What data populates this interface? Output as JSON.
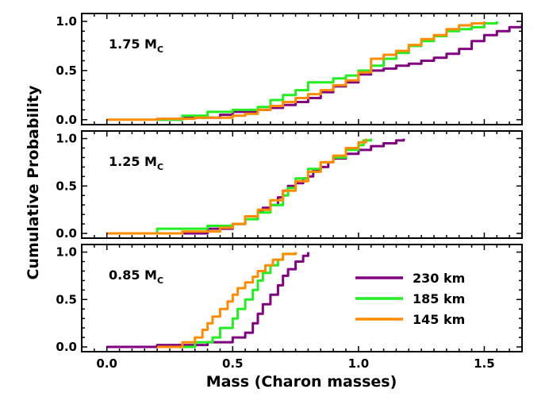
{
  "chart_data": {
    "type": "line",
    "xlabel": "Mass (Charon masses)",
    "ylabel": "Cumulative Probability",
    "xlim": [
      -0.1,
      1.65
    ],
    "ylim": [
      -0.05,
      1.08
    ],
    "x_ticks": [
      "0.0",
      "0.5",
      "1.0",
      "1.5"
    ],
    "x_tick_values": [
      0.0,
      0.5,
      1.0,
      1.5
    ],
    "y_ticks": [
      "0.0",
      "0.5",
      "1.0"
    ],
    "y_tick_values": [
      0.0,
      0.5,
      1.0
    ],
    "legend_placement": "lower-right of bottom panel",
    "series_styles": [
      {
        "name": "230 km",
        "color": "#800080"
      },
      {
        "name": "185 km",
        "color": "#22ee22"
      },
      {
        "name": "145 km",
        "color": "#ff8c00"
      }
    ],
    "panels": [
      {
        "label_main": "1.75 M",
        "label_sub": "C",
        "series": [
          {
            "name": "230 km",
            "x": [
              0.2,
              0.3,
              0.45,
              0.5,
              0.6,
              0.65,
              0.7,
              0.75,
              0.8,
              0.85,
              0.9,
              0.95,
              1.0,
              1.05,
              1.1,
              1.15,
              1.2,
              1.25,
              1.3,
              1.35,
              1.4,
              1.45,
              1.5,
              1.55,
              1.6,
              1.65
            ],
            "y": [
              0.0,
              0.02,
              0.05,
              0.08,
              0.1,
              0.12,
              0.15,
              0.18,
              0.22,
              0.28,
              0.34,
              0.38,
              0.46,
              0.5,
              0.52,
              0.55,
              0.57,
              0.6,
              0.63,
              0.67,
              0.72,
              0.8,
              0.86,
              0.9,
              0.94,
              0.97
            ]
          },
          {
            "name": "185 km",
            "x": [
              0.2,
              0.3,
              0.4,
              0.5,
              0.6,
              0.65,
              0.7,
              0.75,
              0.8,
              0.9,
              0.95,
              1.0,
              1.05,
              1.1,
              1.15,
              1.2,
              1.25,
              1.3,
              1.35,
              1.4,
              1.45,
              1.5,
              1.55
            ],
            "y": [
              0.0,
              0.04,
              0.08,
              0.1,
              0.13,
              0.2,
              0.25,
              0.3,
              0.38,
              0.42,
              0.45,
              0.5,
              0.55,
              0.62,
              0.68,
              0.75,
              0.8,
              0.85,
              0.9,
              0.92,
              0.94,
              0.98,
              1.0
            ]
          },
          {
            "name": "145 km",
            "x": [
              0.0,
              0.2,
              0.35,
              0.5,
              0.55,
              0.6,
              0.65,
              0.7,
              0.75,
              0.8,
              0.85,
              0.9,
              0.95,
              1.0,
              1.05,
              1.1,
              1.15,
              1.2,
              1.25,
              1.3,
              1.35,
              1.4,
              1.45,
              1.5
            ],
            "y": [
              0.0,
              0.01,
              0.02,
              0.04,
              0.06,
              0.1,
              0.14,
              0.18,
              0.22,
              0.26,
              0.3,
              0.35,
              0.4,
              0.48,
              0.62,
              0.66,
              0.7,
              0.76,
              0.82,
              0.86,
              0.92,
              0.96,
              0.98,
              1.0
            ]
          }
        ]
      },
      {
        "label_main": "1.25 M",
        "label_sub": "C",
        "series": [
          {
            "name": "230 km",
            "x": [
              0.2,
              0.4,
              0.5,
              0.55,
              0.6,
              0.62,
              0.65,
              0.68,
              0.7,
              0.72,
              0.75,
              0.78,
              0.8,
              0.82,
              0.85,
              0.88,
              0.9,
              0.95,
              1.0,
              1.05,
              1.1,
              1.15,
              1.18
            ],
            "y": [
              0.0,
              0.05,
              0.1,
              0.18,
              0.24,
              0.27,
              0.3,
              0.38,
              0.45,
              0.5,
              0.53,
              0.58,
              0.6,
              0.67,
              0.7,
              0.75,
              0.79,
              0.84,
              0.88,
              0.92,
              0.95,
              0.98,
              1.0
            ]
          },
          {
            "name": "185 km",
            "x": [
              0.0,
              0.2,
              0.4,
              0.5,
              0.55,
              0.6,
              0.65,
              0.7,
              0.72,
              0.75,
              0.8,
              0.85,
              0.9,
              0.95,
              1.0,
              1.02,
              1.05
            ],
            "y": [
              0.0,
              0.05,
              0.08,
              0.1,
              0.15,
              0.22,
              0.3,
              0.4,
              0.48,
              0.58,
              0.68,
              0.75,
              0.8,
              0.88,
              0.93,
              0.98,
              1.0
            ]
          },
          {
            "name": "145 km",
            "x": [
              0.0,
              0.3,
              0.45,
              0.5,
              0.55,
              0.6,
              0.65,
              0.7,
              0.75,
              0.8,
              0.85,
              0.9,
              0.95,
              1.0,
              1.03
            ],
            "y": [
              0.0,
              0.02,
              0.06,
              0.1,
              0.18,
              0.25,
              0.35,
              0.45,
              0.55,
              0.65,
              0.75,
              0.82,
              0.9,
              0.96,
              1.0
            ]
          }
        ]
      },
      {
        "label_main": "0.85 M",
        "label_sub": "C",
        "series": [
          {
            "name": "230 km",
            "x": [
              0.0,
              0.2,
              0.4,
              0.5,
              0.55,
              0.58,
              0.6,
              0.62,
              0.65,
              0.68,
              0.7,
              0.72,
              0.75,
              0.78,
              0.8
            ],
            "y": [
              0.0,
              0.02,
              0.05,
              0.1,
              0.15,
              0.25,
              0.35,
              0.45,
              0.55,
              0.65,
              0.75,
              0.82,
              0.9,
              0.96,
              1.0
            ]
          },
          {
            "name": "185 km",
            "x": [
              0.2,
              0.35,
              0.42,
              0.45,
              0.5,
              0.52,
              0.55,
              0.58,
              0.6,
              0.62,
              0.65,
              0.68,
              0.7,
              0.75
            ],
            "y": [
              0.0,
              0.05,
              0.1,
              0.2,
              0.3,
              0.4,
              0.5,
              0.6,
              0.7,
              0.78,
              0.86,
              0.92,
              0.98,
              1.0
            ]
          },
          {
            "name": "145 km",
            "x": [
              0.2,
              0.3,
              0.35,
              0.38,
              0.4,
              0.42,
              0.45,
              0.48,
              0.5,
              0.52,
              0.55,
              0.58,
              0.6,
              0.63,
              0.66,
              0.7,
              0.75
            ],
            "y": [
              0.0,
              0.05,
              0.1,
              0.18,
              0.25,
              0.32,
              0.4,
              0.48,
              0.55,
              0.62,
              0.68,
              0.74,
              0.8,
              0.86,
              0.92,
              0.98,
              1.0
            ]
          }
        ]
      }
    ]
  }
}
